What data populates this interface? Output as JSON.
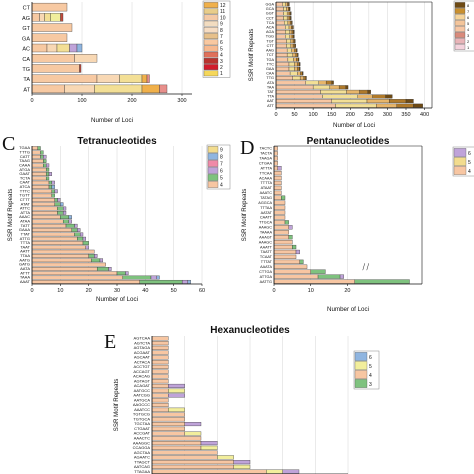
{
  "chart_data": [
    {
      "panel": "A",
      "type": "bar",
      "stacked": true,
      "orientation": "horizontal",
      "title": "",
      "xlabel": "Number of Loci",
      "ylabel": "",
      "xlim": [
        0,
        320
      ],
      "xticks": [
        0,
        100,
        200,
        300
      ],
      "categories": [
        "AT",
        "TA",
        "TG",
        "CA",
        "AC",
        "GA",
        "GT",
        "AG",
        "CT"
      ],
      "legend_labels": [
        "12",
        "11",
        "10",
        "9",
        "8",
        "7",
        "6",
        "5",
        "4",
        "3",
        "2",
        "1"
      ],
      "legend_colors": [
        "#f0b04a",
        "#e8cd8a",
        "#f4c9a5",
        "#f2dcc0",
        "#f6dcc2",
        "#e7c08a",
        "#f9c8a0",
        "#f7b88e",
        "#e0705a",
        "#b9332e",
        "#d21c2c",
        "#f5d75a"
      ],
      "series": [
        {
          "color": "#f7c9a2",
          "values": [
            65,
            130,
            95,
            85,
            30,
            70,
            80,
            15,
            70
          ]
        },
        {
          "color": "#f8d8b4",
          "values": [
            60,
            45,
            0,
            45,
            20,
            0,
            0,
            10,
            0
          ]
        },
        {
          "color": "#f3df95",
          "values": [
            95,
            45,
            0,
            0,
            25,
            0,
            0,
            12,
            0
          ]
        },
        {
          "color": "#f0b04a",
          "values": [
            35,
            10,
            0,
            0,
            0,
            0,
            0,
            0,
            0
          ]
        },
        {
          "color": "#e88f8b",
          "values": [
            15,
            5,
            0,
            0,
            0,
            0,
            0,
            0,
            0
          ]
        },
        {
          "color": "#bfa3d9",
          "values": [
            0,
            0,
            0,
            0,
            15,
            0,
            0,
            0,
            0
          ]
        },
        {
          "color": "#8fb5e0",
          "values": [
            0,
            0,
            0,
            0,
            10,
            0,
            0,
            0,
            0
          ]
        },
        {
          "color": "#f0ee9c",
          "values": [
            0,
            0,
            0,
            0,
            0,
            0,
            0,
            20,
            0
          ]
        },
        {
          "color": "#c24a3d",
          "values": [
            0,
            0,
            3,
            0,
            0,
            0,
            0,
            5,
            0
          ]
        }
      ]
    },
    {
      "panel": "B",
      "type": "bar",
      "stacked": true,
      "orientation": "horizontal",
      "title": "",
      "xlabel": "Number of Loci",
      "ylabel": "SSR Motif Repeats",
      "xlim": [
        0,
        420
      ],
      "xticks": [
        0,
        50,
        100,
        150,
        200,
        250,
        300,
        350,
        400
      ],
      "categories": [
        "ATT",
        "AAT",
        "TTA",
        "TAT",
        "TAA",
        "ATA",
        "TTG",
        "CAA",
        "GAA",
        "TTC",
        "TGA",
        "TCT",
        "AAG",
        "CTT",
        "TGT",
        "TGG",
        "AGA",
        "ACA",
        "TCA",
        "CCT",
        "GGT",
        "GCA",
        "GGA"
      ],
      "legend_labels": [
        "8",
        "7",
        "6",
        "5",
        "4",
        "3",
        "2",
        "1"
      ],
      "legend_colors": [
        "#6e4a14",
        "#c9902f",
        "#f6d49a",
        "#f4c59b",
        "#f7c6a4",
        "#d98a7b",
        "#e9b4b8",
        "#f4d2dc"
      ],
      "series": [
        {
          "color": "#f7c6a2",
          "values": [
            160,
            150,
            125,
            120,
            100,
            80,
            45,
            38,
            35,
            35,
            32,
            30,
            30,
            28,
            28,
            25,
            25,
            25,
            22,
            20,
            20,
            20,
            18
          ]
        },
        {
          "color": "#f3df95",
          "values": [
            110,
            95,
            95,
            70,
            45,
            35,
            20,
            20,
            15,
            15,
            15,
            15,
            12,
            12,
            12,
            12,
            12,
            10,
            10,
            10,
            10,
            8,
            8
          ]
        },
        {
          "color": "#e8b66a",
          "values": [
            55,
            60,
            40,
            35,
            25,
            20,
            10,
            8,
            8,
            8,
            8,
            8,
            8,
            6,
            6,
            6,
            6,
            6,
            6,
            5,
            5,
            5,
            5
          ]
        },
        {
          "color": "#b07a2a",
          "values": [
            45,
            45,
            35,
            22,
            18,
            15,
            5,
            5,
            5,
            5,
            5,
            5,
            5,
            5,
            4,
            4,
            4,
            4,
            4,
            4,
            4,
            3,
            3
          ]
        },
        {
          "color": "#6e4a14",
          "values": [
            25,
            20,
            18,
            8,
            6,
            5,
            2,
            2,
            2,
            2,
            2,
            2,
            2,
            2,
            2,
            2,
            2,
            2,
            2,
            2,
            2,
            2,
            2
          ]
        }
      ]
    },
    {
      "panel": "C",
      "type": "bar",
      "stacked": true,
      "orientation": "horizontal",
      "title": "Tetranucleotides",
      "xlabel": "Number of Loci",
      "ylabel": "SSR Motif Repeats",
      "xlim": [
        0,
        60
      ],
      "xticks": [
        0,
        10,
        20,
        30,
        40,
        50,
        60
      ],
      "categories": [
        "AAAT",
        "TAAA",
        "ATTT",
        "AATA",
        "GATG",
        "AATG",
        "TTAA",
        "AATT",
        "TAAT",
        "TTTA",
        "ATTG",
        "TTAT",
        "GAAA",
        "TATT",
        "ATAA",
        "AAAC",
        "ATTA",
        "ATTC",
        "ATAT",
        "CTTT",
        "TGTT",
        "TTTC",
        "ATCA",
        "CAAT",
        "TCTA",
        "GAAT",
        "ATGA",
        "CAAA",
        "TAAG",
        "CATT",
        "TTTG",
        "TGAA"
      ],
      "legend_labels": [
        "9",
        "8",
        "7",
        "6",
        "5",
        "4"
      ],
      "legend_colors": [
        "#f2dc8e",
        "#8fb5e0",
        "#f08aa8",
        "#bfa3d9",
        "#7ec27e",
        "#f7c6a2"
      ],
      "series": [
        {
          "color": "#f7c6a2",
          "values": [
            38,
            32,
            30,
            23,
            26,
            21,
            20,
            22,
            19,
            18,
            16,
            15,
            14,
            12,
            11,
            10,
            9,
            9,
            8,
            8,
            7,
            7,
            6,
            6,
            5,
            5,
            5,
            4,
            4,
            3,
            3,
            2
          ]
        },
        {
          "color": "#7ec27e",
          "values": [
            15,
            10,
            3,
            4,
            0,
            3,
            2,
            0,
            0,
            2,
            2,
            2,
            2,
            3,
            2,
            3,
            2,
            2,
            2,
            1,
            1,
            1,
            1,
            1,
            1,
            1,
            1,
            1,
            1,
            1,
            1,
            1
          ]
        },
        {
          "color": "#bfa3d9",
          "values": [
            2,
            2,
            1,
            1,
            0,
            1,
            1,
            0,
            1,
            0,
            1,
            1,
            1,
            1,
            1,
            0,
            1,
            1,
            0,
            1,
            0,
            1,
            0,
            1,
            0,
            1,
            0,
            1,
            0,
            1,
            0,
            0
          ]
        },
        {
          "color": "#8fb5e0",
          "values": [
            1,
            1,
            0,
            0,
            0,
            0,
            0,
            0,
            0,
            0,
            0,
            0,
            0,
            0,
            0,
            1,
            0,
            0,
            1,
            0,
            0,
            0,
            1,
            0,
            0,
            0,
            0,
            0,
            0,
            0,
            0,
            0
          ]
        }
      ]
    },
    {
      "panel": "D",
      "type": "bar",
      "stacked": true,
      "orientation": "horizontal",
      "title": "Pentanucleotides",
      "xlabel": "Number of Loci",
      "ylabel": "SSR Motif Repeats",
      "xlim": [
        0,
        70
      ],
      "xticks": [
        0,
        10,
        20
      ],
      "axis_break": [
        25,
        70
      ],
      "categories": [
        "AATTG",
        "ATTGA",
        "CTTGA",
        "AAATA",
        "TTTAT",
        "TCAAT",
        "TAATT",
        "AAATT",
        "AAAGC",
        "AAAGT",
        "TAAAA",
        "AAAGC",
        "TTGCA",
        "CAATT",
        "AATAT",
        "TTTAA",
        "AGGCA",
        "TATAG",
        "AAATC",
        "ATAAT",
        "TTTTA",
        "ACAAA",
        "TTCAA",
        "ATTTA",
        "CTGAA",
        "TAAGA",
        "TACTA",
        "TACTC"
      ],
      "legend_labels": [
        "6",
        "5",
        "4"
      ],
      "legend_colors": [
        "#bfa3d9",
        "#f2dc8e",
        "#f7c6a2"
      ],
      "series": [
        {
          "color": "#f7c6a2",
          "values": [
            22,
            12,
            10,
            9,
            7,
            6,
            6,
            5,
            5,
            4,
            4,
            4,
            3,
            3,
            3,
            3,
            3,
            2,
            2,
            2,
            2,
            2,
            2,
            1,
            1,
            1,
            1,
            1
          ]
        },
        {
          "color": "#7ec27e",
          "values": [
            38,
            6,
            4,
            0,
            1,
            0,
            0,
            1,
            0,
            1,
            0,
            0,
            1,
            0,
            0,
            0,
            0,
            1,
            0,
            0,
            0,
            0,
            0,
            0,
            0,
            0,
            0,
            0
          ]
        },
        {
          "color": "#bfa3d9",
          "values": [
            0,
            1,
            0,
            0,
            0,
            0,
            1,
            0,
            0,
            0,
            0,
            1,
            0,
            0,
            0,
            0,
            0,
            0,
            0,
            0,
            0,
            0,
            0,
            1,
            0,
            0,
            0,
            0
          ]
        }
      ]
    },
    {
      "panel": "E",
      "type": "bar",
      "stacked": true,
      "orientation": "horizontal",
      "title": "Hexanucleotides",
      "xlabel": "",
      "ylabel": "SSR Motif Repeats",
      "xlim": [
        0,
        12
      ],
      "categories": [
        "TTAGAA",
        "AATCAG",
        "TTAGCT",
        "AGAATC",
        "AGCTAA",
        "CCAGGA",
        "AAAGGC",
        "AAACTC",
        "ACCGAT",
        "CTGAAT",
        "TGCTAA",
        "TGTGCA",
        "TGTGCG",
        "AAATCC",
        "AAGCCC",
        "AATGCA",
        "AATCGG",
        "AATGCC",
        "ACAGAT",
        "AGTAGT",
        "ACACAG",
        "ACCAGT",
        "ACCTGT",
        "ACTACA",
        "AGCAAT",
        "ACGAAT",
        "AGTAGA",
        "AGTCTA",
        "AGTCAA"
      ],
      "legend_labels": [
        "6",
        "5",
        "4",
        "3"
      ],
      "legend_colors": [
        "#8fb5e0",
        "#f2ee9c",
        "#f7c6a2",
        "#7ec27e"
      ],
      "series": [
        {
          "color": "#f7c6a2",
          "values": [
            7,
            5,
            5,
            4,
            4,
            3,
            3,
            3,
            2,
            2,
            2,
            2,
            2,
            1,
            1,
            1,
            1,
            1,
            1,
            1,
            1,
            1,
            1,
            1,
            1,
            1,
            1,
            1,
            1
          ]
        },
        {
          "color": "#f2ee9c",
          "values": [
            1,
            1,
            0,
            1,
            0,
            1,
            0,
            0,
            1,
            0,
            0,
            0,
            0,
            1,
            0,
            0,
            0,
            1,
            0,
            0,
            0,
            0,
            0,
            0,
            0,
            0,
            0,
            0,
            0
          ]
        },
        {
          "color": "#bfa3d9",
          "values": [
            1,
            0,
            1,
            0,
            0,
            0,
            1,
            0,
            0,
            0,
            1,
            0,
            0,
            0,
            0,
            0,
            1,
            0,
            1,
            0,
            0,
            0,
            0,
            0,
            0,
            0,
            0,
            0,
            0
          ]
        }
      ]
    }
  ]
}
